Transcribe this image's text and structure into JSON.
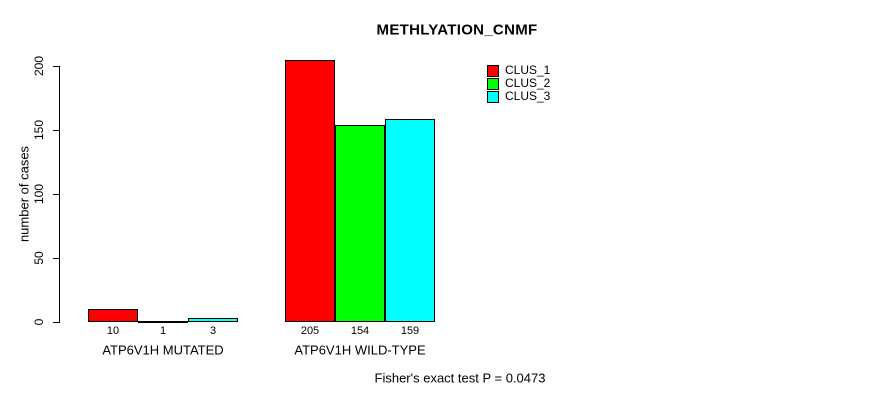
{
  "chart_data": {
    "type": "bar",
    "title": "METHLYATION_CNMF",
    "ylabel": "number of cases",
    "xlabel": "",
    "ylim": [
      0,
      205
    ],
    "yticks": [
      0,
      50,
      100,
      150,
      200
    ],
    "grid": false,
    "legend_position": "top-right",
    "categories": [
      "ATP6V1H MUTATED",
      "ATP6V1H WILD-TYPE"
    ],
    "series": [
      {
        "name": "CLUS_1",
        "color": "#ff0000",
        "values": [
          10,
          205
        ]
      },
      {
        "name": "CLUS_2",
        "color": "#00ff00",
        "values": [
          1,
          154
        ]
      },
      {
        "name": "CLUS_3",
        "color": "#00ffff",
        "values": [
          3,
          159
        ]
      }
    ],
    "bar_value_labels": [
      [
        "10",
        "1",
        "3"
      ],
      [
        "205",
        "154",
        "159"
      ]
    ],
    "annotation": "Fisher's exact test P = 0.0473"
  }
}
